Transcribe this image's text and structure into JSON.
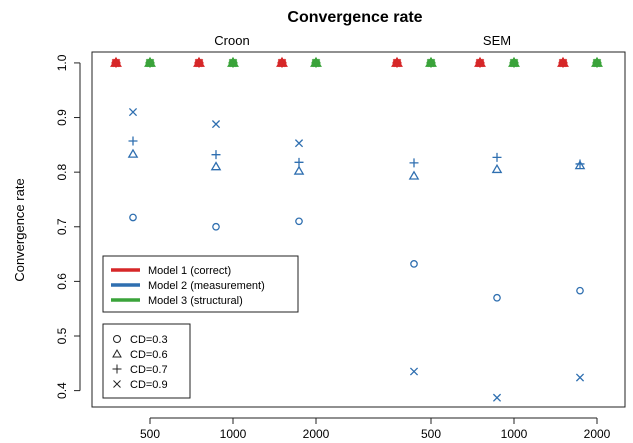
{
  "chart_data": {
    "type": "scatter",
    "title": "Convergence rate",
    "ylabel": "Convergence rate",
    "xlabel": "",
    "panels": [
      "Croon",
      "SEM"
    ],
    "x_ticks": [
      "500",
      "1000",
      "2000",
      "500",
      "1000",
      "2000"
    ],
    "sample_sizes": [
      500,
      1000,
      2000
    ],
    "ylim": [
      0.37,
      1.02
    ],
    "y_ticks": [
      0.4,
      0.5,
      0.6,
      0.7,
      0.8,
      0.9,
      1.0
    ],
    "grid": false,
    "legend_models": [
      {
        "label": "Model 1 (correct)",
        "color": "#d62728"
      },
      {
        "label": "Model 2 (measurement)",
        "color": "#2f6fb0"
      },
      {
        "label": "Model 3 (structural)",
        "color": "#3aa33a"
      }
    ],
    "legend_cd": [
      {
        "label": "CD=0.3",
        "marker": "circle"
      },
      {
        "label": "CD=0.6",
        "marker": "triangle"
      },
      {
        "label": "CD=0.7",
        "marker": "plus"
      },
      {
        "label": "CD=0.9",
        "marker": "x"
      }
    ],
    "series": [
      {
        "model": 1,
        "panel": "Croon",
        "cd": "all",
        "sample_sizes": [
          500,
          1000,
          2000
        ],
        "values": [
          1.0,
          1.0,
          1.0
        ]
      },
      {
        "model": 3,
        "panel": "Croon",
        "cd": "all",
        "sample_sizes": [
          500,
          1000,
          2000
        ],
        "values": [
          1.0,
          1.0,
          1.0
        ]
      },
      {
        "model": 1,
        "panel": "SEM",
        "cd": "all",
        "sample_sizes": [
          500,
          1000,
          2000
        ],
        "values": [
          1.0,
          1.0,
          1.0
        ]
      },
      {
        "model": 3,
        "panel": "SEM",
        "cd": "all",
        "sample_sizes": [
          500,
          1000,
          2000
        ],
        "values": [
          1.0,
          1.0,
          1.0
        ]
      },
      {
        "model": 2,
        "panel": "Croon",
        "cd": "0.3",
        "sample_sizes": [
          500,
          1000,
          2000
        ],
        "values": [
          0.717,
          0.7,
          0.71
        ]
      },
      {
        "model": 2,
        "panel": "Croon",
        "cd": "0.6",
        "sample_sizes": [
          500,
          1000,
          2000
        ],
        "values": [
          0.833,
          0.81,
          0.802
        ]
      },
      {
        "model": 2,
        "panel": "Croon",
        "cd": "0.7",
        "sample_sizes": [
          500,
          1000,
          2000
        ],
        "values": [
          0.857,
          0.832,
          0.818
        ]
      },
      {
        "model": 2,
        "panel": "Croon",
        "cd": "0.9",
        "sample_sizes": [
          500,
          1000,
          2000
        ],
        "values": [
          0.91,
          0.888,
          0.853
        ]
      },
      {
        "model": 2,
        "panel": "SEM",
        "cd": "0.3",
        "sample_sizes": [
          500,
          1000,
          2000
        ],
        "values": [
          0.632,
          0.57,
          0.583
        ]
      },
      {
        "model": 2,
        "panel": "SEM",
        "cd": "0.6",
        "sample_sizes": [
          500,
          1000,
          2000
        ],
        "values": [
          0.793,
          0.805,
          0.812
        ]
      },
      {
        "model": 2,
        "panel": "SEM",
        "cd": "0.7",
        "sample_sizes": [
          500,
          1000,
          2000
        ],
        "values": [
          0.817,
          0.827,
          0.815
        ]
      },
      {
        "model": 2,
        "panel": "SEM",
        "cd": "0.9",
        "sample_sizes": [
          500,
          1000,
          2000
        ],
        "values": [
          0.435,
          0.387,
          0.424
        ]
      }
    ]
  }
}
